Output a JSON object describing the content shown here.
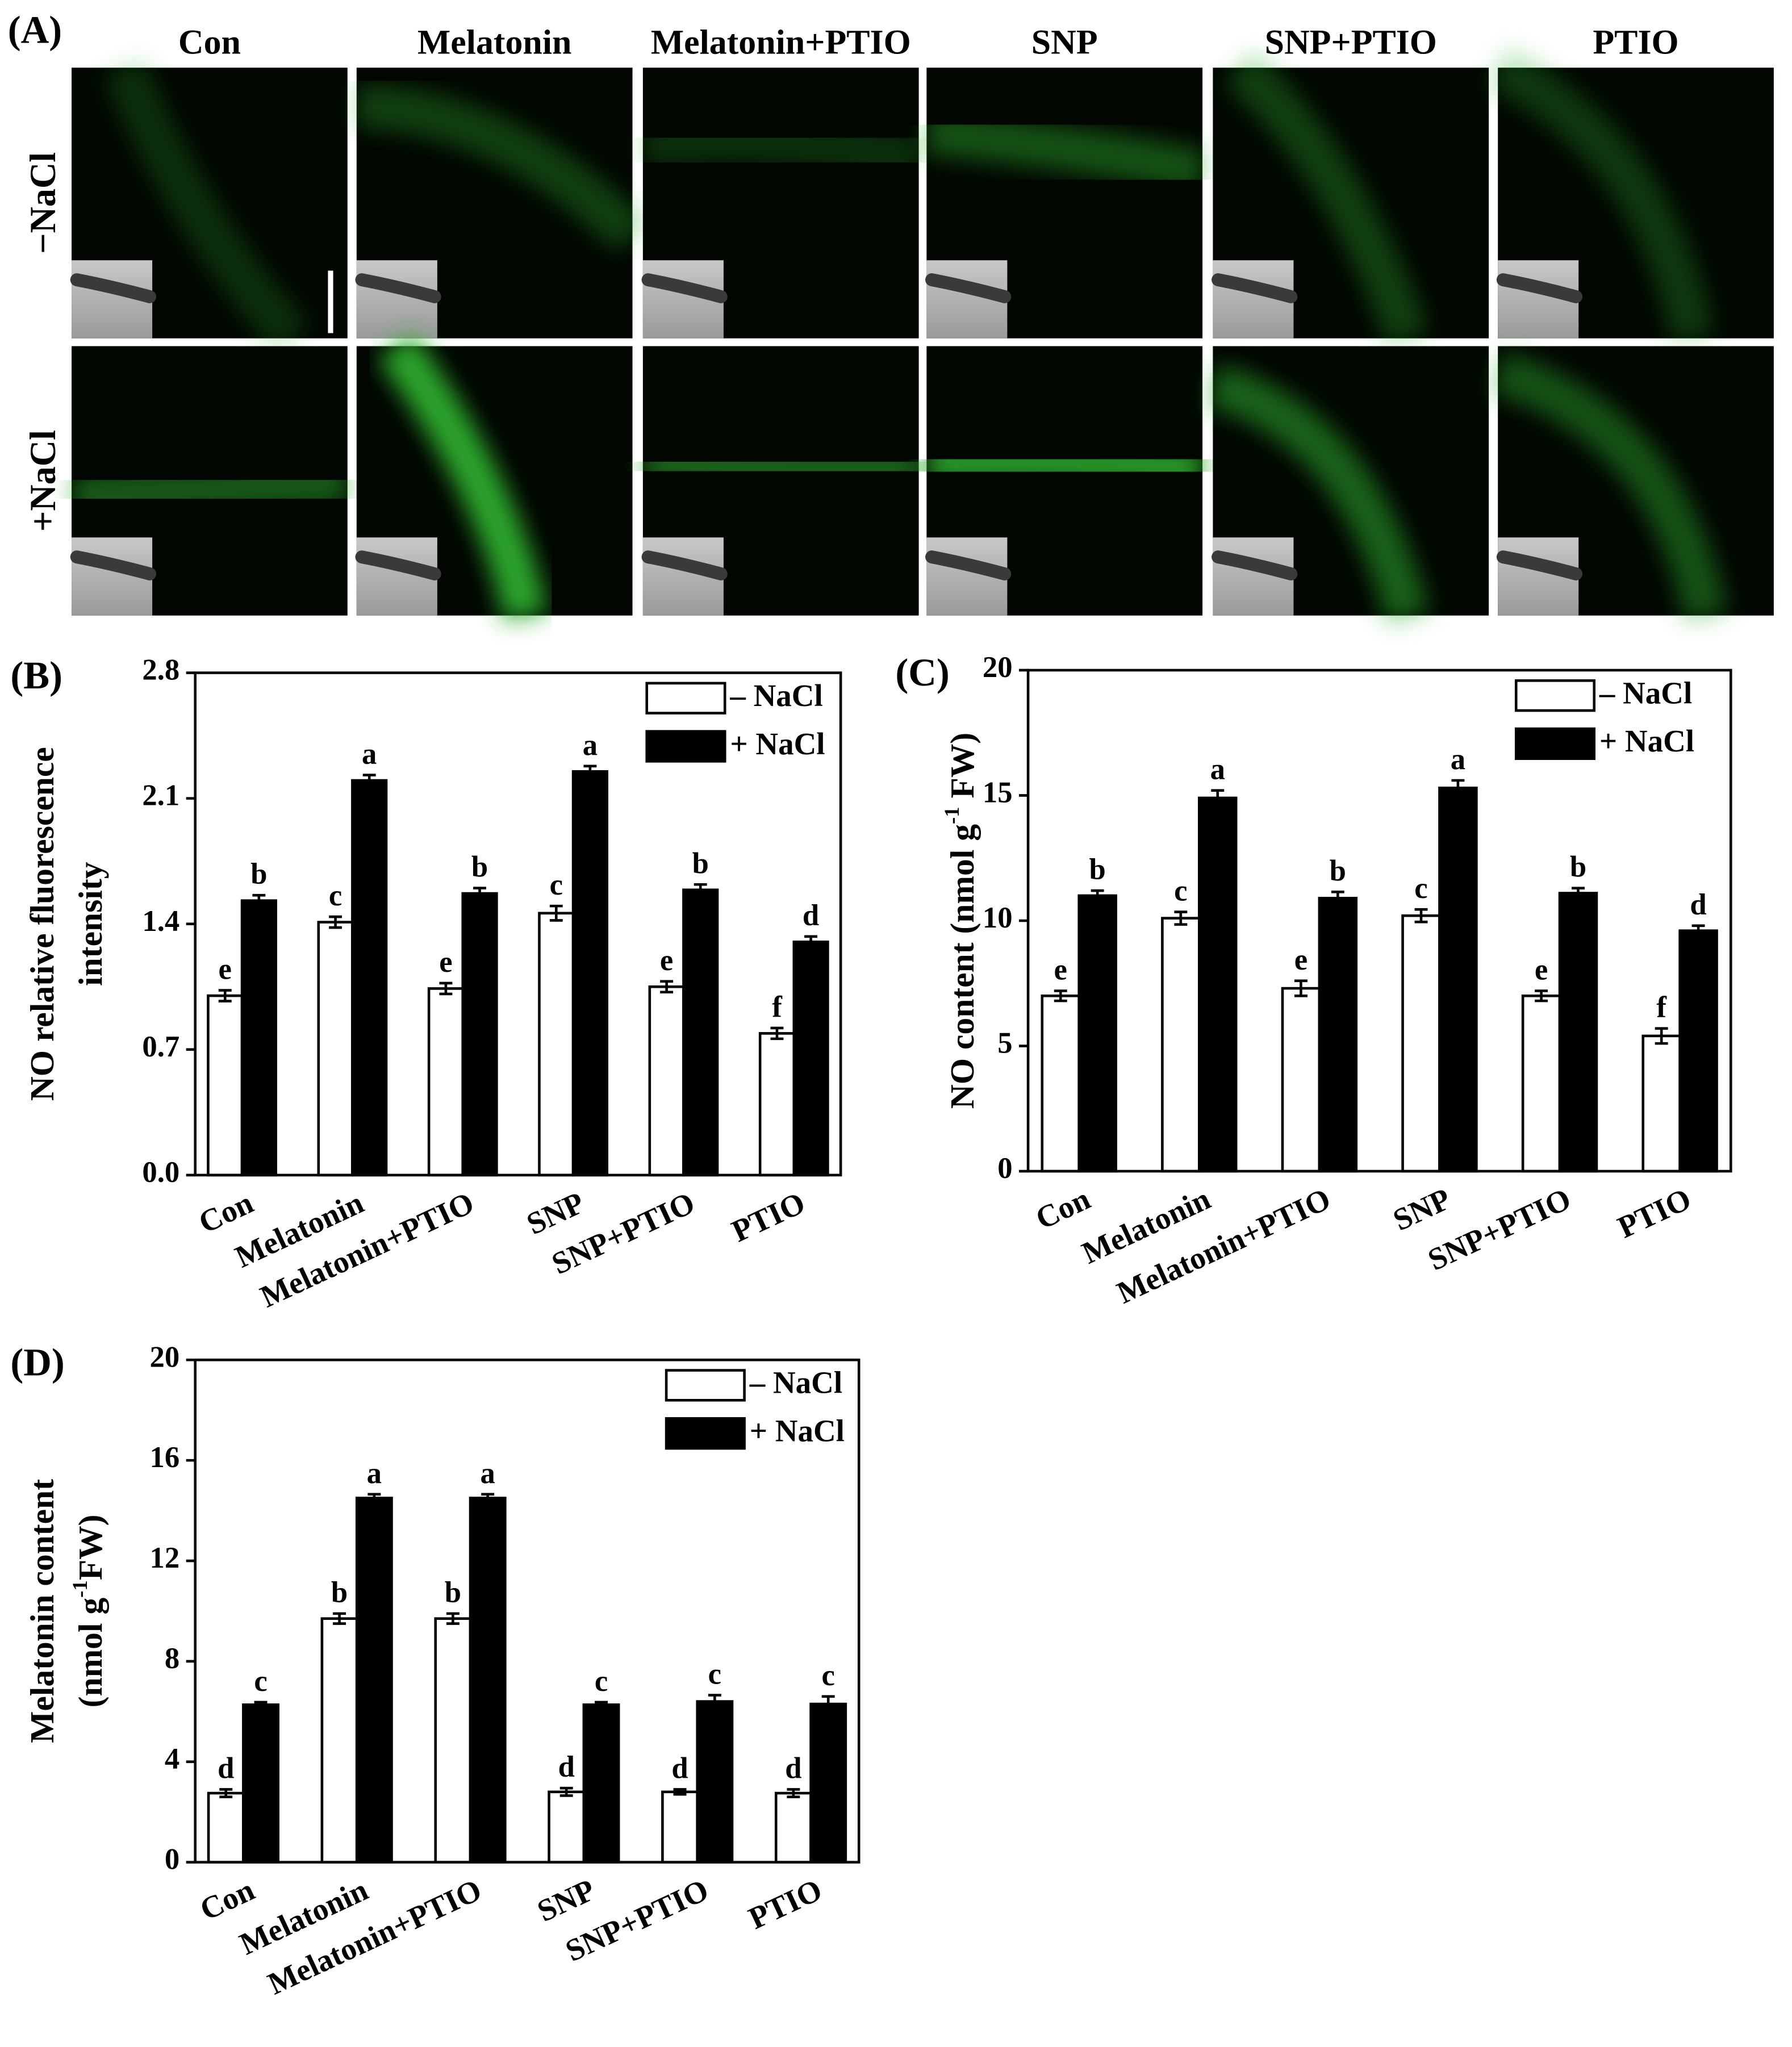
{
  "panel_a": {
    "label": "(A)",
    "columns": [
      "Con",
      "Melatonin",
      "Melatonin+PTIO",
      "SNP",
      "SNP+PTIO",
      "PTIO"
    ],
    "rows": [
      "−NaCl",
      "+NaCl"
    ]
  },
  "chart_data": [
    {
      "type": "bar",
      "panel_label": "(B)",
      "ylabel": [
        [
          {
            "text": "NO relative fluorescence"
          }
        ],
        [
          {
            "text": "intensity"
          }
        ]
      ],
      "categories": [
        "Con",
        "Melatonin",
        "Melatonin+PTIO",
        "SNP",
        "SNP+PTIO",
        "PTIO"
      ],
      "series": [
        {
          "name": "– NaCl",
          "color": "#ffffff",
          "values": [
            1.0,
            1.41,
            1.04,
            1.46,
            1.05,
            0.79
          ],
          "errors": [
            0.03,
            0.03,
            0.03,
            0.04,
            0.03,
            0.03
          ],
          "letters": [
            "e",
            "c",
            "e",
            "c",
            "e",
            "f"
          ]
        },
        {
          "name": "+ NaCl",
          "color": "#000000",
          "values": [
            1.53,
            2.2,
            1.57,
            2.25,
            1.59,
            1.3
          ],
          "errors": [
            0.03,
            0.03,
            0.03,
            0.03,
            0.03,
            0.03
          ],
          "letters": [
            "b",
            "a",
            "b",
            "a",
            "b",
            "d"
          ]
        }
      ],
      "ylim": [
        0,
        2.8
      ],
      "yticks": [
        {
          "value": 0,
          "label": "0.0"
        },
        0.7,
        1.4,
        2.1,
        2.8
      ],
      "legend": "upper right"
    },
    {
      "type": "bar",
      "panel_label": "(C)",
      "ylabel": [
        [
          {
            "text": "NO content (nmol g"
          },
          {
            "text": "-1",
            "sup": true
          },
          {
            "text": " FW)"
          }
        ]
      ],
      "categories": [
        "Con",
        "Melatonin",
        "Melatonin+PTIO",
        "SNP",
        "SNP+PTIO",
        "PTIO"
      ],
      "series": [
        {
          "name": "– NaCl",
          "color": "#ffffff",
          "values": [
            7.0,
            10.1,
            7.3,
            10.2,
            7.0,
            5.4
          ],
          "errors": [
            0.2,
            0.25,
            0.3,
            0.25,
            0.2,
            0.3
          ],
          "letters": [
            "e",
            "c",
            "e",
            "c",
            "e",
            "f"
          ]
        },
        {
          "name": "+ NaCl",
          "color": "#000000",
          "values": [
            11.0,
            14.9,
            10.9,
            15.3,
            11.1,
            9.6
          ],
          "errors": [
            0.2,
            0.3,
            0.25,
            0.3,
            0.2,
            0.2
          ],
          "letters": [
            "b",
            "a",
            "b",
            "a",
            "b",
            "d"
          ]
        }
      ],
      "ylim": [
        0,
        20
      ],
      "yticks": [
        0,
        5,
        10,
        15,
        20
      ],
      "legend": "upper right"
    },
    {
      "type": "bar",
      "panel_label": "(D)",
      "ylabel": [
        [
          {
            "text": "Melatonin content"
          }
        ],
        [
          {
            "text": "(nmol g"
          },
          {
            "text": "-1",
            "sup": true
          },
          {
            "text": "FW)"
          }
        ]
      ],
      "categories": [
        "Con",
        "Melatonin",
        "Melatonin+PTIO",
        "SNP",
        "SNP+PTIO",
        "PTIO"
      ],
      "series": [
        {
          "name": "– NaCl",
          "color": "#ffffff",
          "values": [
            2.75,
            9.7,
            9.7,
            2.8,
            2.8,
            2.75
          ],
          "errors": [
            0.15,
            0.2,
            0.2,
            0.15,
            0.1,
            0.15
          ],
          "letters": [
            "d",
            "b",
            "b",
            "d",
            "d",
            "d"
          ]
        },
        {
          "name": "+ NaCl",
          "color": "#000000",
          "values": [
            6.27,
            14.5,
            14.5,
            6.27,
            6.4,
            6.3
          ],
          "errors": [
            0.1,
            0.15,
            0.15,
            0.1,
            0.25,
            0.3
          ],
          "letters": [
            "c",
            "a",
            "a",
            "c",
            "c",
            "c"
          ]
        }
      ],
      "ylim": [
        0,
        20
      ],
      "yticks": [
        0,
        4,
        8,
        12,
        16,
        20
      ],
      "legend": "upper right"
    }
  ]
}
